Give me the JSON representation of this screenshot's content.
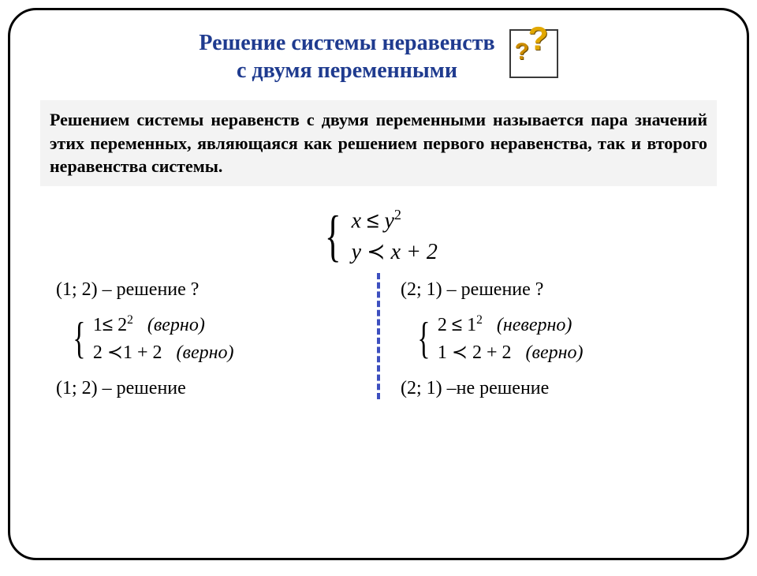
{
  "colors": {
    "title": "#1f3b8f",
    "border": "#000000",
    "definition_bg": "#f3f3f3",
    "separator": "#3d4fbf",
    "q_main": "#e2a800",
    "q_shadow": "#6b4a00"
  },
  "title_line1": "Решение системы неравенств",
  "title_line2": "с двумя переменными",
  "icon": {
    "big": "?",
    "small": "?"
  },
  "definition": "Решением системы неравенств с двумя переменными называется пара значений этих переменных, являющаяся как решением первого неравенства, так и второго неравенства системы.",
  "system": {
    "line1": {
      "lhs": "x",
      "op": "≤",
      "rhs_base": "y",
      "rhs_exp": "2"
    },
    "line2": {
      "lhs": "y",
      "op": "≺",
      "rhs": "x + 2"
    }
  },
  "left": {
    "question": "(1; 2) – решение ?",
    "check1": {
      "expr_lhs": "1",
      "op": "≤",
      "base": "2",
      "exp": "2",
      "note": "(верно)"
    },
    "check2": {
      "expr_lhs": "2",
      "op": "≺",
      "rhs": "1 + 2",
      "note": "(верно)"
    },
    "answer": "(1; 2) – решение"
  },
  "right": {
    "question": "(2; 1) – решение  ?",
    "check1": {
      "expr_lhs": "2",
      "op": "≤",
      "base": "1",
      "exp": "2",
      "note": "(неверно)"
    },
    "check2": {
      "expr_lhs": "1",
      "op": "≺",
      "rhs": "2 + 2",
      "note": "(верно)"
    },
    "answer": "(2; 1) –не  решение"
  },
  "fontsize": {
    "title": 28,
    "definition": 22,
    "math_main": 28,
    "body": 24
  }
}
